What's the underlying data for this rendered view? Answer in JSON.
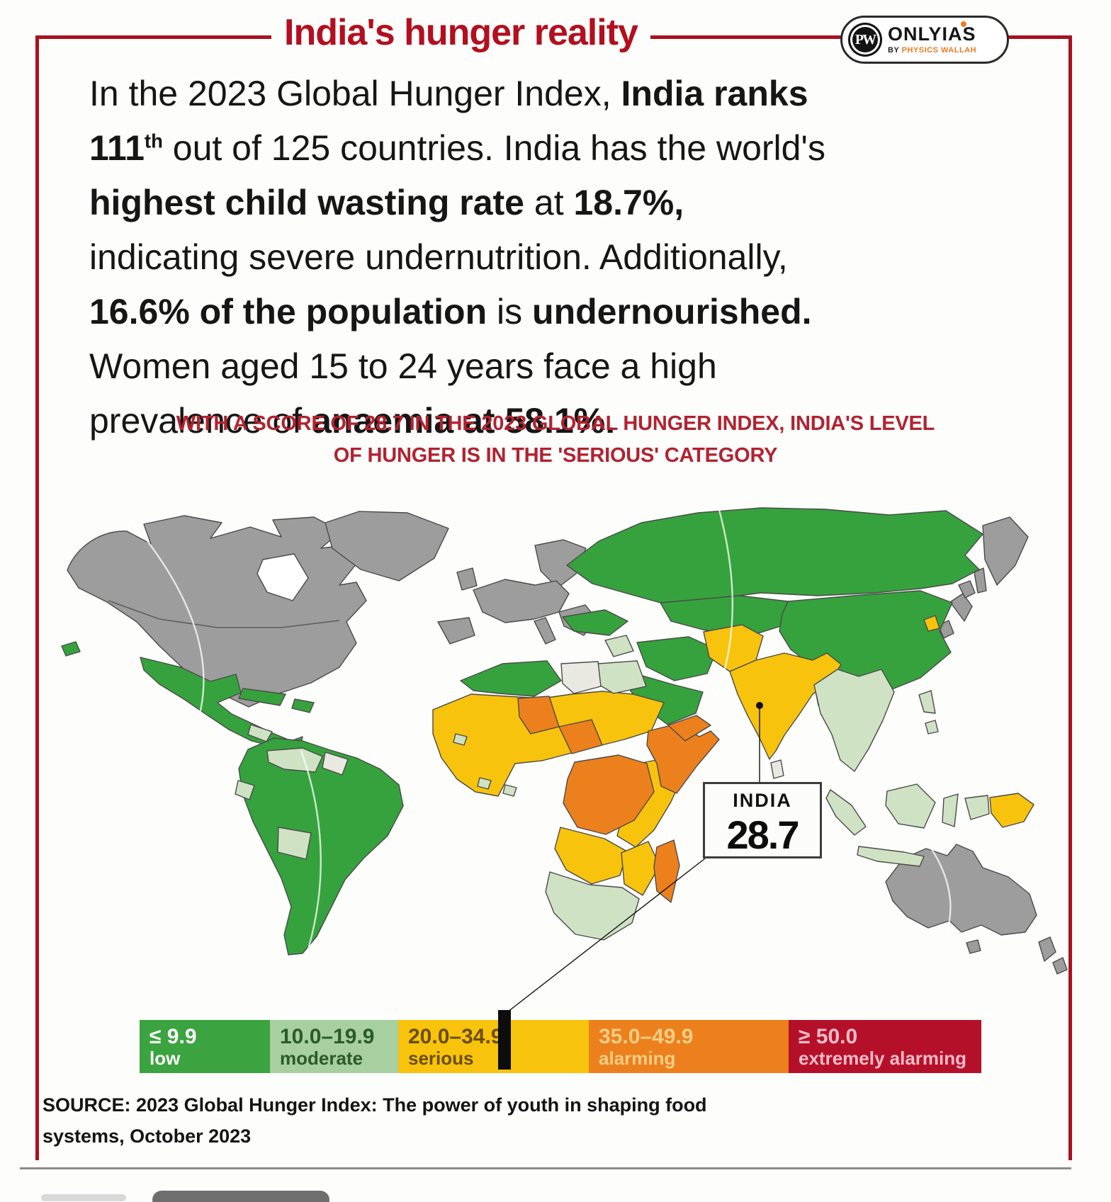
{
  "header": {
    "title": "India's hunger reality",
    "logo": {
      "monogram": "PW",
      "name": "ONLYIAS",
      "by": "BY",
      "brand": "PHYSICS WALLAH"
    }
  },
  "intro": {
    "segments": [
      {
        "t": "In the 2023 Global Hunger Index, "
      },
      {
        "t": "India ranks",
        "b": true,
        "br": true
      },
      {
        "t": "111",
        "b": true
      },
      {
        "t": "th",
        "b": true,
        "sup": true
      },
      {
        "t": " out of 125 countries. India has the world's",
        "br": true
      },
      {
        "t": "highest child wasting rate",
        "b": true
      },
      {
        "t": " at "
      },
      {
        "t": "18.7%,",
        "b": true,
        "br": true
      },
      {
        "t": "indicating severe undernutrition. Additionally,",
        "br": true
      },
      {
        "t": "16.6% of the population",
        "b": true
      },
      {
        "t": " is "
      },
      {
        "t": "undernourished.",
        "b": true,
        "br": true
      },
      {
        "t": "Women aged 15 to 24 years face a high",
        "br": true
      },
      {
        "t": "prevalence of "
      },
      {
        "t": "anaemia at 58.1%.",
        "b": true
      }
    ]
  },
  "subtitle": {
    "line1": "WITH A SCORE OF 28.7 IN THE 2023 GLOBAL HUNGER INDEX, INDIA'S LEVEL",
    "line2": "OF HUNGER IS IN THE 'SERIOUS' CATEGORY"
  },
  "map": {
    "callout": {
      "country": "INDIA",
      "score": "28.7"
    }
  },
  "palette": {
    "low": "#36a23d",
    "moderate": "#cfe3c4",
    "serious": "#f7c30d",
    "alarming": "#ec801d",
    "extremely_alarming": "#b01226",
    "not_included": "#9d9d9d",
    "no_data": "#e9e9e2",
    "ocean": "#ffffff",
    "frame_red": "#a8121f",
    "title_red": "#b30f1e",
    "subtitle_red": "#b22230"
  },
  "legend": {
    "items": [
      {
        "range": "≤ 9.9",
        "label": "low",
        "bg": "#3ba33f",
        "fg": "#ffffff"
      },
      {
        "range": "10.0–19.9",
        "label": "moderate",
        "bg": "#a7cfa0",
        "fg": "#2b5a2b"
      },
      {
        "range": "20.0–34.9",
        "label": "serious",
        "bg": "#f7c30d",
        "fg": "#6b4e00"
      },
      {
        "range": "35.0–49.9",
        "label": "alarming",
        "bg": "#ec801d",
        "fg": "#f9cd84"
      },
      {
        "range": "≥ 50.0",
        "label": "extremely alarming",
        "bg": "#b5102a",
        "fg": "#ffbcc8"
      }
    ]
  },
  "source": {
    "line1": "SOURCE: 2023 Global Hunger Index: The power of youth in shaping food",
    "line2": "systems, October 2023"
  }
}
